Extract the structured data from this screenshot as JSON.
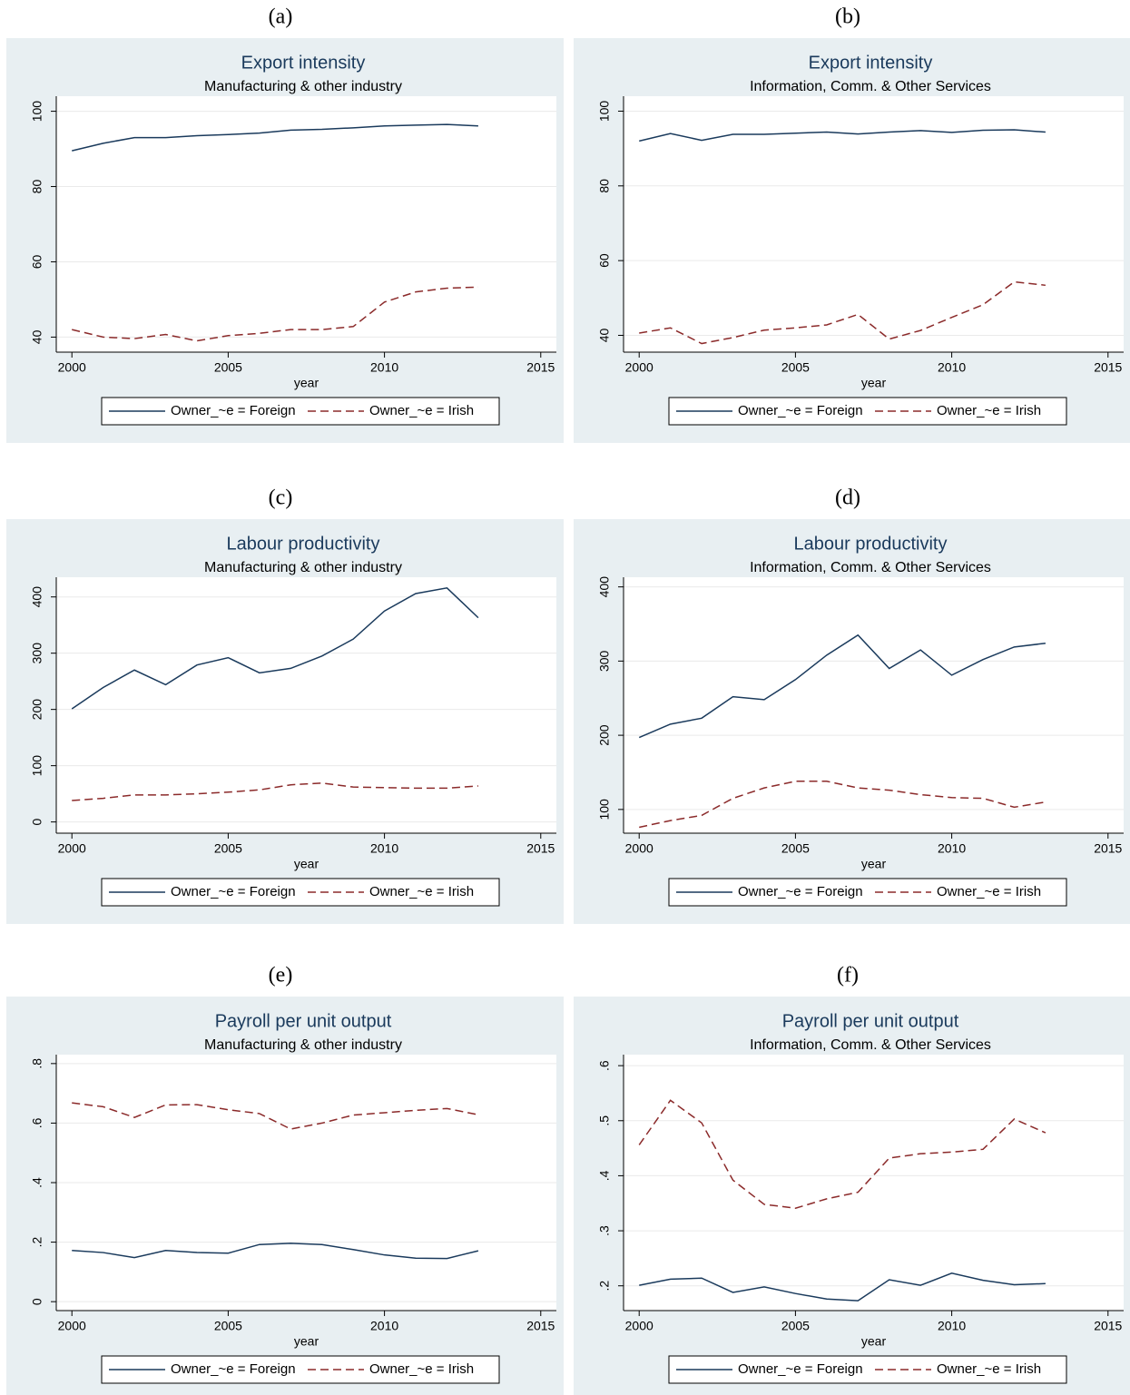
{
  "chart_data": [
    {
      "type": "line",
      "panel_label": "(a)",
      "title": "Export intensity",
      "subtitle": "Manufacturing & other industry",
      "xlabel": "year",
      "x": [
        2000,
        2001,
        2002,
        2003,
        2004,
        2005,
        2006,
        2007,
        2008,
        2009,
        2010,
        2011,
        2012,
        2013
      ],
      "xlim": [
        1999.5,
        2015.5
      ],
      "xticks": [
        2000,
        2005,
        2010,
        2015
      ],
      "ylim": [
        36,
        104
      ],
      "yticks": [
        40,
        60,
        80,
        100
      ],
      "grid": true,
      "series": [
        {
          "name": "Owner_~e = Foreign",
          "color": "#1a3a5c",
          "style": "solid",
          "values": [
            89.5,
            91.5,
            93,
            93,
            93.5,
            93.8,
            94.2,
            95,
            95.2,
            95.6,
            96.1,
            96.3,
            96.5,
            96.1
          ]
        },
        {
          "name": "Owner_~e = Irish",
          "color": "#8b2a2a",
          "style": "dashed",
          "values": [
            42,
            40,
            39.6,
            40.7,
            39,
            40.4,
            41,
            42,
            42,
            42.8,
            49.3,
            52,
            53,
            53.3
          ]
        }
      ]
    },
    {
      "type": "line",
      "panel_label": "(b)",
      "title": "Export intensity",
      "subtitle": "Information, Comm. & Other Services",
      "xlabel": "year",
      "x": [
        2000,
        2001,
        2002,
        2003,
        2004,
        2005,
        2006,
        2007,
        2008,
        2009,
        2010,
        2011,
        2012,
        2013
      ],
      "xlim": [
        1999.5,
        2015.5
      ],
      "xticks": [
        2000,
        2005,
        2010,
        2015
      ],
      "ylim": [
        35.5,
        104
      ],
      "yticks": [
        40,
        60,
        80,
        100
      ],
      "grid": true,
      "series": [
        {
          "name": "Owner_~e = Foreign",
          "color": "#1a3a5c",
          "style": "solid",
          "values": [
            92,
            94,
            92.2,
            93.8,
            93.8,
            94.1,
            94.4,
            93.9,
            94.4,
            94.8,
            94.3,
            94.9,
            95,
            94.4
          ]
        },
        {
          "name": "Owner_~e = Irish",
          "color": "#8b2a2a",
          "style": "dashed",
          "values": [
            40.6,
            42,
            37.8,
            39.4,
            41.4,
            42,
            42.8,
            45.6,
            39,
            41.3,
            44.8,
            48.2,
            54.3,
            53.4
          ]
        }
      ]
    },
    {
      "type": "line",
      "panel_label": "(c)",
      "title": "Labour productivity",
      "subtitle": "Manufacturing & other industry",
      "xlabel": "year",
      "x": [
        2000,
        2001,
        2002,
        2003,
        2004,
        2005,
        2006,
        2007,
        2008,
        2009,
        2010,
        2011,
        2012,
        2013
      ],
      "xlim": [
        1999.5,
        2015.5
      ],
      "xticks": [
        2000,
        2005,
        2010,
        2015
      ],
      "ylim": [
        -20,
        435
      ],
      "yticks": [
        0,
        100,
        200,
        300,
        400
      ],
      "grid": true,
      "series": [
        {
          "name": "Owner_~e = Foreign",
          "color": "#1a3a5c",
          "style": "solid",
          "values": [
            201,
            239,
            270,
            244,
            279,
            292,
            265,
            273,
            295,
            325,
            375,
            406,
            416,
            363
          ]
        },
        {
          "name": "Owner_~e = Irish",
          "color": "#8b2a2a",
          "style": "dashed",
          "values": [
            38,
            42,
            48,
            48,
            50,
            53,
            57,
            66,
            69,
            62,
            61,
            60,
            60,
            64
          ]
        }
      ]
    },
    {
      "type": "line",
      "panel_label": "(d)",
      "title": "Labour productivity",
      "subtitle": "Information, Comm. & Other Services",
      "xlabel": "year",
      "x": [
        2000,
        2001,
        2002,
        2003,
        2004,
        2005,
        2006,
        2007,
        2008,
        2009,
        2010,
        2011,
        2012,
        2013
      ],
      "xlim": [
        1999.5,
        2015.5
      ],
      "xticks": [
        2000,
        2005,
        2010,
        2015
      ],
      "ylim": [
        68,
        413
      ],
      "yticks": [
        100,
        200,
        300,
        400
      ],
      "grid": true,
      "series": [
        {
          "name": "Owner_~e = Foreign",
          "color": "#1a3a5c",
          "style": "solid",
          "values": [
            197,
            215,
            223,
            252,
            248,
            275,
            308,
            335,
            290,
            315,
            281,
            302,
            319,
            324
          ]
        },
        {
          "name": "Owner_~e = Irish",
          "color": "#8b2a2a",
          "style": "dashed",
          "values": [
            76,
            85,
            92,
            115,
            129,
            138,
            138,
            129,
            126,
            120,
            116,
            115,
            103,
            110
          ]
        }
      ]
    },
    {
      "type": "line",
      "panel_label": "(e)",
      "title": "Payroll per unit output",
      "subtitle": "Manufacturing & other industry",
      "xlabel": "year",
      "x": [
        2000,
        2001,
        2002,
        2003,
        2004,
        2005,
        2006,
        2007,
        2008,
        2009,
        2010,
        2011,
        2012,
        2013
      ],
      "xlim": [
        1999.5,
        2015.5
      ],
      "xticks": [
        2000,
        2005,
        2010,
        2015
      ],
      "ylim": [
        -0.03,
        0.83
      ],
      "yticks": [
        0,
        {
          "value": 0.2,
          "label": ".2"
        },
        {
          "value": 0.4,
          "label": ".4"
        },
        {
          "value": 0.6,
          "label": ".6"
        },
        {
          "value": 0.8,
          "label": ".8"
        }
      ],
      "grid": true,
      "series": [
        {
          "name": "Owner_~e = Foreign",
          "color": "#1a3a5c",
          "style": "solid",
          "values": [
            0.172,
            0.165,
            0.148,
            0.172,
            0.165,
            0.163,
            0.192,
            0.196,
            0.192,
            0.175,
            0.157,
            0.146,
            0.145,
            0.171
          ]
        },
        {
          "name": "Owner_~e = Irish",
          "color": "#8b2a2a",
          "style": "dashed",
          "values": [
            0.668,
            0.655,
            0.619,
            0.661,
            0.662,
            0.645,
            0.632,
            0.58,
            0.6,
            0.627,
            0.635,
            0.643,
            0.649,
            0.628
          ]
        }
      ]
    },
    {
      "type": "line",
      "panel_label": "(f)",
      "title": "Payroll per unit output",
      "subtitle": "Information, Comm. & Other Services",
      "xlabel": "year",
      "x": [
        2000,
        2001,
        2002,
        2003,
        2004,
        2005,
        2006,
        2007,
        2008,
        2009,
        2010,
        2011,
        2012,
        2013
      ],
      "xlim": [
        1999.5,
        2015.5
      ],
      "xticks": [
        2000,
        2005,
        2010,
        2015
      ],
      "ylim": [
        0.155,
        0.62
      ],
      "yticks": [
        {
          "value": 0.2,
          "label": ".2"
        },
        {
          "value": 0.3,
          "label": ".3"
        },
        {
          "value": 0.4,
          "label": ".4"
        },
        {
          "value": 0.5,
          "label": ".5"
        },
        {
          "value": 0.6,
          "label": ".6"
        }
      ],
      "grid": true,
      "series": [
        {
          "name": "Owner_~e = Foreign",
          "color": "#1a3a5c",
          "style": "solid",
          "values": [
            0.201,
            0.212,
            0.214,
            0.188,
            0.198,
            0.186,
            0.176,
            0.173,
            0.211,
            0.201,
            0.223,
            0.21,
            0.202,
            0.204
          ]
        },
        {
          "name": "Owner_~e = Irish",
          "color": "#8b2a2a",
          "style": "dashed",
          "values": [
            0.456,
            0.537,
            0.496,
            0.392,
            0.348,
            0.341,
            0.358,
            0.37,
            0.432,
            0.44,
            0.443,
            0.448,
            0.503,
            0.478
          ]
        }
      ]
    }
  ]
}
